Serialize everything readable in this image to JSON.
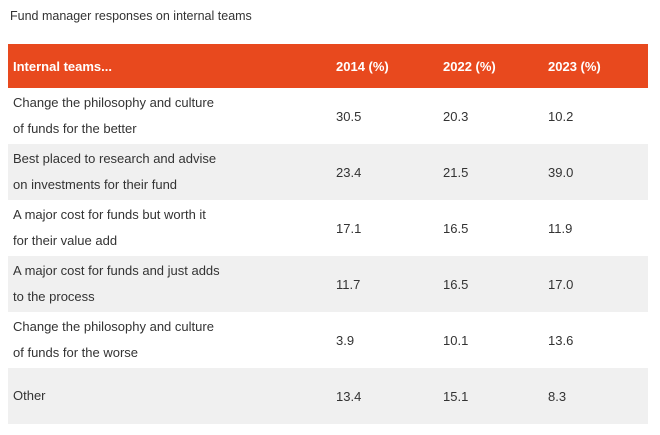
{
  "title": "Fund manager responses on internal teams",
  "colors": {
    "header_bg": "#E8491E",
    "header_text": "#FFFFFF",
    "row_bg": "#FFFFFF",
    "row_alt_bg": "#F0F0F0",
    "body_text": "#333333"
  },
  "table": {
    "headers": [
      "Internal teams...",
      "2014 (%)",
      "2022 (%)",
      "2023 (%)"
    ],
    "rows": [
      {
        "label": "Change the philosophy and culture\nof funds for the better",
        "values": [
          "30.5",
          "20.3",
          "10.2"
        ]
      },
      {
        "label": "Best placed to research and advise\non investments for their fund",
        "values": [
          "23.4",
          "21.5",
          "39.0"
        ]
      },
      {
        "label": "A major cost for funds but worth it\nfor their value add",
        "values": [
          "17.1",
          "16.5",
          "11.9"
        ]
      },
      {
        "label": "A major cost for funds and just adds\nto the process",
        "values": [
          "11.7",
          "16.5",
          "17.0"
        ]
      },
      {
        "label": "Change the philosophy and culture\nof funds for the worse",
        "values": [
          "3.9",
          "10.1",
          "13.6"
        ]
      },
      {
        "label": "Other",
        "values": [
          "13.4",
          "15.1",
          "8.3"
        ]
      }
    ]
  },
  "chart_data": {
    "type": "table",
    "title": "Fund manager responses on internal teams",
    "categories": [
      "Change the philosophy and culture of funds for the better",
      "Best placed to research and advise on investments for their fund",
      "A major cost for funds but worth it for their value add",
      "A major cost for funds and just adds to the process",
      "Change the philosophy and culture of funds for the worse",
      "Other"
    ],
    "series": [
      {
        "name": "2014 (%)",
        "values": [
          30.5,
          23.4,
          17.1,
          11.7,
          3.9,
          13.4
        ]
      },
      {
        "name": "2022 (%)",
        "values": [
          20.3,
          21.5,
          16.5,
          16.5,
          10.1,
          15.1
        ]
      },
      {
        "name": "2023 (%)",
        "values": [
          10.2,
          39.0,
          11.9,
          17.0,
          13.6,
          8.3
        ]
      }
    ]
  }
}
